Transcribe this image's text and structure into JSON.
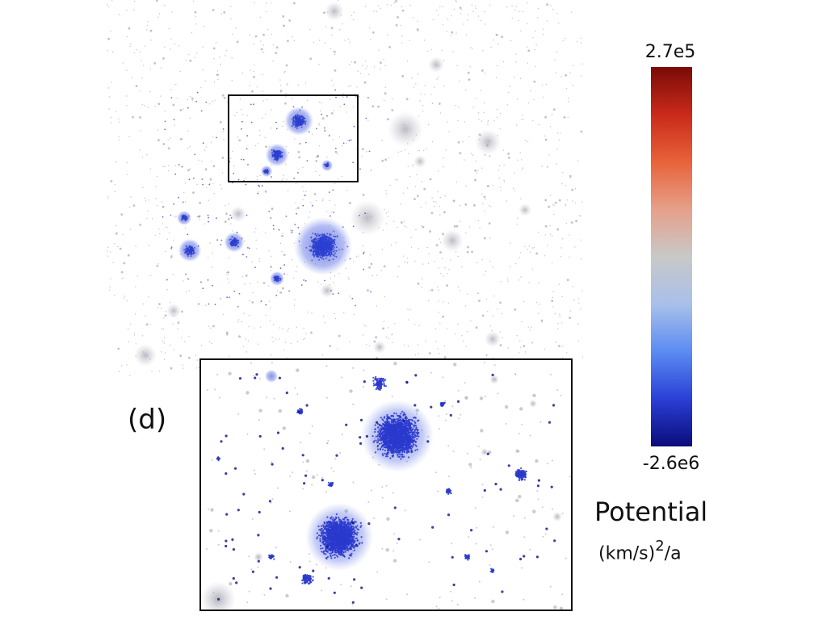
{
  "panel_label": "(d)",
  "colorbar": {
    "max_label": "2.7e5",
    "min_label": "-2.6e6",
    "title": "Potential",
    "units_prefix": "(km/s)",
    "units_exponent": "2",
    "units_suffix": "/a",
    "colors": [
      "#0b0c7a",
      "#2a3fd6",
      "#5b8cf2",
      "#a9c0ea",
      "#c8c8c8",
      "#e6a08a",
      "#e8623a",
      "#c92a1a",
      "#7a0a06"
    ]
  },
  "colors": {
    "cluster_blue": "#2b3fd0",
    "halo_gray": "#9a9aa8",
    "box_stroke": "#111111"
  }
}
